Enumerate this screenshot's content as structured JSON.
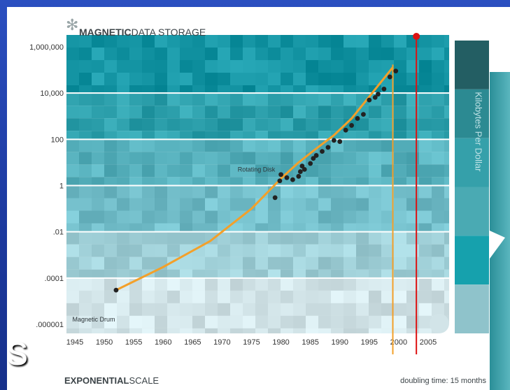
{
  "slide": {
    "edge_letter": "s",
    "background_color": "#1f3fa8"
  },
  "figure": {
    "logo_icon": "asterisk-logo-icon",
    "title_bold": "MAGNETIC",
    "title_light": "DATA STORAGE",
    "footer_left_bold": "EXPONENTIAL",
    "footer_left_light": "SCALE",
    "footer_right": "doubling time: 15 months"
  },
  "chart_data": {
    "type": "scatter",
    "title": "MAGNETIC DATA STORAGE",
    "xlabel": "",
    "ylabel": "Kilobytes Per Dollar",
    "xlim": [
      1945,
      2008
    ],
    "ylim": [
      1e-06,
      1000000
    ],
    "yscale": "log",
    "x_ticks": [
      1945,
      1950,
      1955,
      1960,
      1965,
      1970,
      1975,
      1980,
      1985,
      1990,
      1995,
      2000,
      2005
    ],
    "x_tick_labels": [
      "1945",
      "1950",
      "1955",
      "1960",
      "1965",
      "1970",
      "1975",
      "1980",
      "1985",
      "1990",
      "1995",
      "2000",
      "2005"
    ],
    "y_ticks": [
      1000000,
      10000,
      100,
      1,
      0.01,
      0.0001,
      1e-06
    ],
    "y_tick_labels": [
      "1,000,000",
      "10,000",
      "100",
      "1",
      ".01",
      ".0001",
      ".000001"
    ],
    "grid": true,
    "annotations": [
      {
        "text": "Magnetic Drum",
        "x": 1951,
        "y": 1.5e-06
      },
      {
        "text": "Rotating Disk",
        "x": 1980.5,
        "y": 5
      }
    ],
    "series": [
      {
        "kind": "points",
        "color": "#222222",
        "x": [
          1952,
          1979,
          1979.8,
          1980,
          1981,
          1982,
          1983,
          1983.3,
          1983.6,
          1984,
          1985,
          1985.5,
          1986,
          1987,
          1988,
          1989,
          1990,
          1991,
          1992,
          1993,
          1994,
          1995,
          1996,
          1996.5,
          1997.5,
          1998.5,
          1999.5
        ],
        "y": [
          3e-05,
          0.3,
          1.6,
          3,
          2.2,
          1.8,
          2.5,
          4,
          7,
          5,
          9,
          15,
          20,
          30,
          45,
          90,
          80,
          250,
          400,
          800,
          1200,
          5000,
          6500,
          9000,
          15000,
          50000,
          90000
        ]
      },
      {
        "kind": "trend",
        "color": "#f3a02a",
        "x": [
          1952,
          1960,
          1968,
          1975,
          1980,
          1983,
          1986,
          1989,
          1992,
          1995,
          1999
        ],
        "y": [
          3e-05,
          0.0003,
          0.004,
          0.1,
          2,
          10,
          40,
          150,
          800,
          7000,
          130000
        ]
      }
    ],
    "reference_lines": [
      {
        "x": 1999,
        "color": "#f3a02a"
      },
      {
        "x": 2003,
        "color": "#dd1111",
        "marker": "dot"
      }
    ],
    "legend": "right",
    "legend_colors": [
      "#235e63",
      "#2c8a92",
      "#35a0aa",
      "#4aaab3",
      "#16a1ad",
      "#8fc3cb"
    ]
  }
}
